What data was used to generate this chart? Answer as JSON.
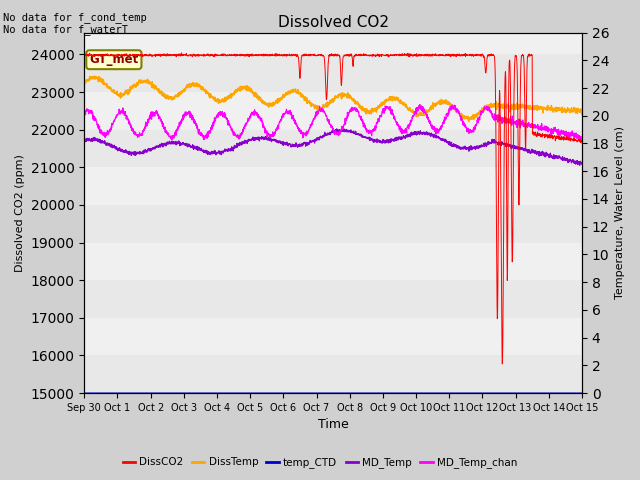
{
  "title": "Dissolved CO2",
  "xlabel": "Time",
  "ylabel_left": "Dissolved CO2 (ppm)",
  "ylabel_right": "Temperature, Water Level (cm)",
  "annotation_text": "No data for f_cond_temp\nNo data for f_waterT",
  "gt_met_label": "GT_met",
  "ylim_left": [
    15000,
    24580
  ],
  "ylim_right": [
    0,
    26
  ],
  "yticks_left": [
    15000,
    16000,
    17000,
    18000,
    19000,
    20000,
    21000,
    22000,
    23000,
    24000
  ],
  "yticks_right": [
    0,
    2,
    4,
    6,
    8,
    10,
    12,
    14,
    16,
    18,
    20,
    22,
    24,
    26
  ],
  "xtick_labels": [
    "Sep 30",
    "Oct 1",
    "Oct 2",
    "Oct 3",
    "Oct 4",
    "Oct 5",
    "Oct 6",
    "Oct 7",
    "Oct 8",
    "Oct 9",
    "Oct 10",
    "Oct 11",
    "Oct 12",
    "Oct 13",
    "Oct 14",
    "Oct 15"
  ],
  "colors": {
    "DissCO2": "#ff0000",
    "DissTemp": "#ffa500",
    "temp_CTD": "#0000cd",
    "MD_Temp": "#8800cc",
    "MD_Temp_chan": "#ff00ff"
  },
  "plot_bg_color": "#f0f0f0",
  "band_colors": [
    "#e8e8e8",
    "#f0f0f0"
  ],
  "legend_entries": [
    "DissCO2",
    "DissTemp",
    "temp_CTD",
    "MD_Temp",
    "MD_Temp_chan"
  ]
}
